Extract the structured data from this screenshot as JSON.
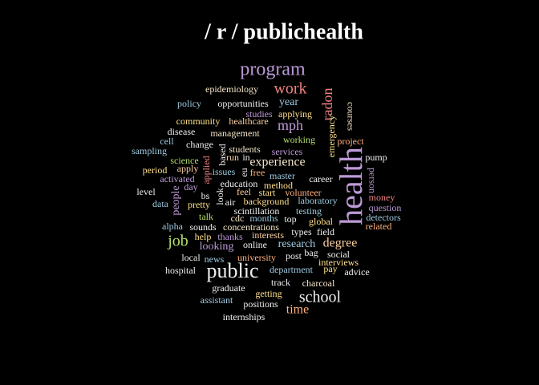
{
  "chart_data": {
    "type": "wordcloud",
    "title": "/ r / publichealth",
    "words": [
      "program",
      "work",
      "epidemiology",
      "policy",
      "opportunities",
      "year",
      "radon",
      "courses",
      "studies",
      "applying",
      "community",
      "healthcare",
      "mph",
      "emergency",
      "disease",
      "management",
      "cell",
      "change",
      "working",
      "project",
      "sampling",
      "students",
      "services",
      "based",
      "run",
      "in",
      "experience",
      "pump",
      "science",
      "health",
      "applied",
      "period",
      "apply",
      "issues",
      "eu",
      "free",
      "master",
      "career",
      "person",
      "activated",
      "day",
      "education",
      "method",
      "level",
      "people",
      "bs",
      "look",
      "feel",
      "start",
      "volunteer",
      "money",
      "data",
      "pretty",
      "air",
      "background",
      "laboratory",
      "question",
      "scintillation",
      "testing",
      "talk",
      "cdc",
      "months",
      "top",
      "global",
      "detectors",
      "alpha",
      "sounds",
      "concentrations",
      "types",
      "field",
      "related",
      "job",
      "help",
      "thanks",
      "interests",
      "degree",
      "looking",
      "online",
      "research",
      "bag",
      "local",
      "news",
      "university",
      "post",
      "social",
      "interviews",
      "pay",
      "hospital",
      "public",
      "department",
      "advice",
      "track",
      "charcoal",
      "graduate",
      "getting",
      "school",
      "assistant",
      "positions",
      "time",
      "internships"
    ],
    "values": [
      24,
      20,
      12,
      12,
      12,
      14,
      18,
      12,
      12,
      12,
      12,
      12,
      18,
      12,
      12,
      12,
      12,
      12,
      12,
      12,
      12,
      12,
      12,
      12,
      12,
      12,
      16,
      12,
      12,
      40,
      12,
      12,
      12,
      12,
      12,
      12,
      12,
      12,
      12,
      12,
      12,
      12,
      12,
      12,
      14,
      12,
      12,
      12,
      12,
      12,
      12,
      12,
      12,
      12,
      12,
      12,
      12,
      12,
      12,
      12,
      12,
      12,
      12,
      12,
      12,
      12,
      12,
      12,
      12,
      12,
      12,
      20,
      12,
      12,
      12,
      16,
      14,
      12,
      14,
      12,
      12,
      12,
      12,
      12,
      12,
      12,
      12,
      12,
      26,
      12,
      12,
      12,
      12,
      12,
      12,
      20,
      12,
      12,
      16,
      12
    ],
    "colors": [
      "#bc9ad6",
      "#f08080",
      "#f5e6c8",
      "#9ecae1",
      "#f0f0f0",
      "#9ecae1",
      "#f08080",
      "#f5e6c8",
      "#bc9ad6",
      "#ffe08a",
      "#ffe08a",
      "#fdd0a2",
      "#bc9ad6",
      "#ffe08a",
      "#f0f0f0",
      "#f5e6c8",
      "#9ecae1",
      "#f0f0f0",
      "#b3de69",
      "#ffb07c",
      "#9ecae1",
      "#f5e6c8",
      "#bc9ad6",
      "#f0f0f0",
      "#fdd0a2",
      "#f0f0f0",
      "#f5e6c8",
      "#f0f0f0",
      "#b3de69",
      "#bc9ad6",
      "#f08080",
      "#ffe08a",
      "#fdd0a2",
      "#9ecae1",
      "#f0f0f0",
      "#ffb07c",
      "#9ecae1",
      "#f0f0f0",
      "#bc9ad6",
      "#bc9ad6",
      "#bc9ad6",
      "#f0f0f0",
      "#ffe08a",
      "#f0f0f0",
      "#bc9ad6",
      "#f0f0f0",
      "#f0f0f0",
      "#fdd0a2",
      "#ffe08a",
      "#ffb07c",
      "#f08080",
      "#9ecae1",
      "#ffe08a",
      "#f0f0f0",
      "#ffe08a",
      "#9ecae1",
      "#bc9ad6",
      "#f0f0f0",
      "#9ecae1",
      "#b3de69",
      "#f5e6c8",
      "#9ecae1",
      "#f0f0f0",
      "#ffe08a",
      "#9ecae1",
      "#9ecae1",
      "#f0f0f0",
      "#f5e6c8",
      "#f0f0f0",
      "#f0f0f0",
      "#ffb07c",
      "#b3de69",
      "#ffe08a",
      "#bc9ad6",
      "#fdd0a2",
      "#fdd0a2",
      "#bc9ad6",
      "#f0f0f0",
      "#9ecae1",
      "#f0f0f0",
      "#f0f0f0",
      "#9ecae1",
      "#ffb07c",
      "#f0f0f0",
      "#f0f0f0",
      "#ffe08a",
      "#ffe08a",
      "#f0f0f0",
      "#f0f0f0",
      "#9ecae1",
      "#f0f0f0",
      "#f0f0f0",
      "#f5e6c8",
      "#f0f0f0",
      "#ffe08a",
      "#f0f0f0",
      "#9ecae1",
      "#f0f0f0",
      "#ffb07c",
      "#f0f0f0"
    ]
  }
}
